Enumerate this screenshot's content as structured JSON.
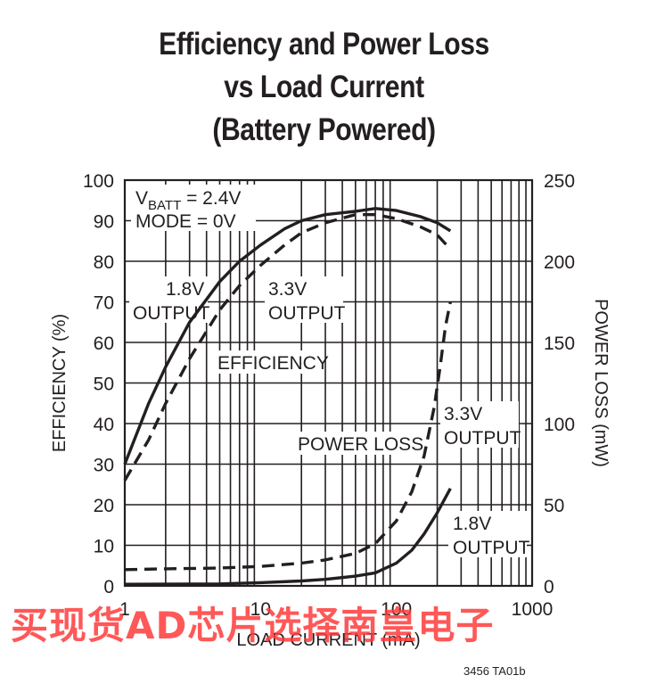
{
  "title_lines": [
    "Efficiency and Power Loss",
    "vs Load Current",
    "(Battery Powered)"
  ],
  "figure_code": "3456 TA01b",
  "watermark": "买现货AD芯片选择南皇电子",
  "chart_data": {
    "type": "line",
    "title": "Efficiency and Power Loss vs Load Current (Battery Powered)",
    "xlabel": "LOAD CURRENT (mA)",
    "ylabel_left": "EFFICIENCY (%)",
    "ylabel_right": "POWER LOSS (mW)",
    "xscale": "log",
    "xlim": [
      1,
      1000
    ],
    "ylim_left": [
      0,
      100
    ],
    "ylim_right": [
      0,
      250
    ],
    "x_ticks": [
      "1",
      "10",
      "100",
      "1000"
    ],
    "y_ticks_left": [
      "0",
      "10",
      "20",
      "30",
      "40",
      "50",
      "60",
      "70",
      "80",
      "90",
      "100"
    ],
    "y_ticks_right": [
      "0",
      "50",
      "100",
      "150",
      "200",
      "250"
    ],
    "grid": true,
    "conditions": {
      "line1_main": "V",
      "line1_sub": "BATT",
      "line1_rest": " = 2.4V",
      "line2": "MODE = 0V"
    },
    "annotations": {
      "eff_18_a": "1.8V",
      "eff_18_b": "OUTPUT",
      "eff_33_a": "3.3V",
      "eff_33_b": "OUTPUT",
      "efficiency": "EFFICIENCY",
      "power_loss": "POWER LOSS",
      "pl_33_a": "3.3V",
      "pl_33_b": "OUTPUT",
      "pl_18_a": "1.8V",
      "pl_18_b": "OUTPUT"
    },
    "series": [
      {
        "group": "efficiency",
        "axis": "left",
        "style": "solid",
        "x": [
          1,
          1.5,
          2,
          3,
          5,
          7,
          10,
          15,
          20,
          30,
          50,
          70,
          100,
          150,
          200,
          250
        ],
        "y": [
          30,
          45,
          54,
          65,
          75,
          80,
          84,
          88,
          90,
          91.5,
          92.3,
          93,
          92.5,
          91,
          89.5,
          87.5
        ]
      },
      {
        "group": "efficiency",
        "axis": "left",
        "style": "dashed",
        "x": [
          1,
          1.5,
          2,
          3,
          5,
          7,
          10,
          15,
          20,
          30,
          50,
          70,
          100,
          150,
          200,
          250
        ],
        "y": [
          26,
          36,
          45,
          56,
          68,
          74,
          79,
          84,
          87,
          89.5,
          91.5,
          91.5,
          90.5,
          88.5,
          86.5,
          83
        ]
      },
      {
        "group": "power_loss",
        "axis": "right",
        "style": "dashed",
        "x": [
          1,
          2,
          5,
          10,
          20,
          30,
          50,
          70,
          100,
          130,
          160,
          190,
          210,
          230,
          250
        ],
        "y": [
          10,
          10.5,
          11,
          12,
          14,
          16,
          20,
          26,
          40,
          58,
          80,
          110,
          135,
          160,
          175
        ]
      },
      {
        "group": "power_loss",
        "axis": "right",
        "style": "solid",
        "x": [
          1,
          5,
          10,
          20,
          30,
          50,
          70,
          100,
          130,
          160,
          200,
          250
        ],
        "y": [
          1,
          1.2,
          2,
          3,
          4,
          6,
          8,
          14,
          22,
          32,
          45,
          60
        ]
      }
    ]
  }
}
